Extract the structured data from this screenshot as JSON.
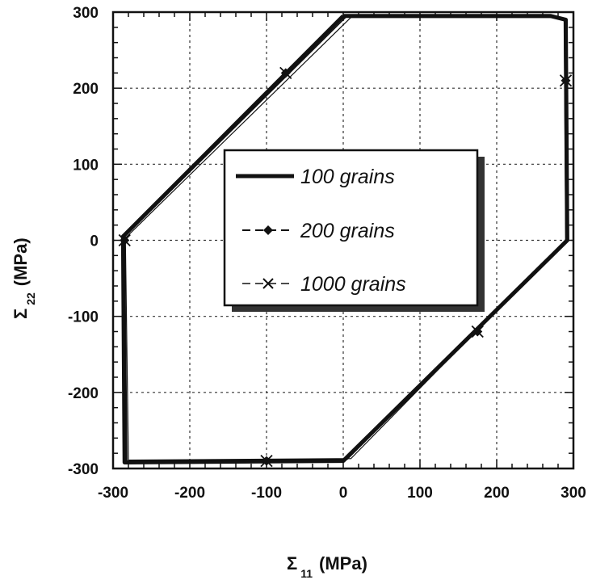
{
  "chart_data": {
    "type": "line",
    "title": "",
    "xlabel": {
      "symbol": "Σ",
      "subscript": "11",
      "unit": "(MPa)"
    },
    "ylabel": {
      "symbol": "Σ",
      "subscript": "22",
      "unit": "(MPa)"
    },
    "xlim": [
      -300,
      300
    ],
    "ylim": [
      -300,
      300
    ],
    "xticks": [
      "-300",
      "-200",
      "-100",
      "0",
      "100",
      "200",
      "300"
    ],
    "yticks": [
      "300",
      "200",
      "100",
      "0",
      "-100",
      "-200",
      "-300"
    ],
    "grid": true,
    "legend_position": "center",
    "series": [
      {
        "name": "100 grains",
        "marker": "none",
        "line": "solid-thick",
        "x": [
          0,
          270,
          290,
          292,
          0,
          -285,
          -287,
          0
        ],
        "y": [
          295,
          295,
          290,
          0,
          -290,
          -292,
          5,
          295
        ]
      },
      {
        "name": "200 grains",
        "marker": "diamond",
        "line": "dash",
        "x": [
          5,
          270,
          288,
          290,
          5,
          -282,
          -285,
          5
        ],
        "y": [
          295,
          294,
          290,
          0,
          -288,
          -290,
          5,
          295
        ],
        "marker_x": [
          -75,
          290,
          175,
          -100,
          -285
        ],
        "marker_y": [
          220,
          210,
          -120,
          -290,
          0
        ]
      },
      {
        "name": "1000 grains",
        "marker": "x",
        "line": "dash",
        "x": [
          10,
          272,
          290,
          291,
          10,
          -280,
          -284,
          10
        ],
        "y": [
          293,
          293,
          289,
          2,
          -287,
          -289,
          3,
          293
        ],
        "marker_x": [
          -75,
          290,
          175,
          -100,
          -285
        ],
        "marker_y": [
          220,
          210,
          -120,
          -290,
          0
        ]
      }
    ]
  }
}
